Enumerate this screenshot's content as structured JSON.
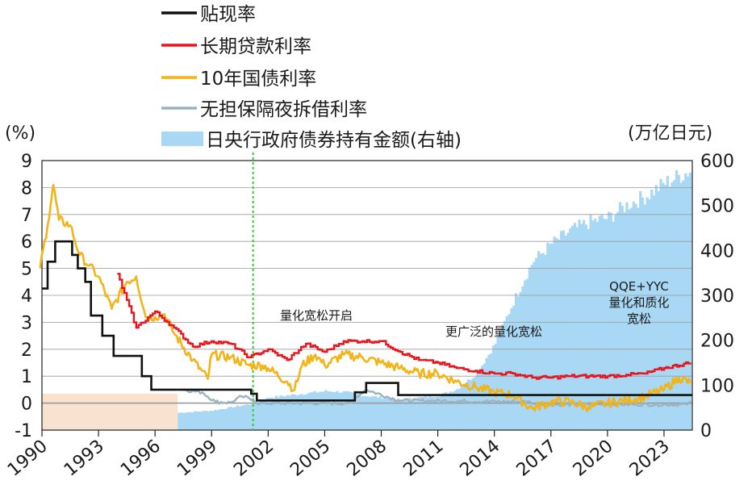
{
  "chart_data": {
    "type": "line",
    "ylabel_left": "(%)",
    "ylabel_right": "(万亿日元)",
    "ylim_left": [
      -1,
      9
    ],
    "ylim_right": [
      0,
      600
    ],
    "xlim": [
      1990,
      2024.5
    ],
    "x_ticks": [
      "1990",
      "1993",
      "1996",
      "1999",
      "2002",
      "2005",
      "2008",
      "2011",
      "2014",
      "2017",
      "2020",
      "2023"
    ],
    "y_ticks_left": [
      "9",
      "8",
      "7",
      "6",
      "5",
      "4",
      "3",
      "2",
      "1",
      "0",
      "-1"
    ],
    "y_ticks_right": [
      "600",
      "500",
      "400",
      "300",
      "200",
      "100",
      "0"
    ],
    "grid": true,
    "legend_position": "top-center",
    "colors": {
      "discount": "#111111",
      "long_term": "#e8141c",
      "jgb10": "#f2b418",
      "call": "#9ab3c0",
      "boj_holdings": "#a9d8f5",
      "background_shade": "#f9e2cf",
      "vline": "#33cc33"
    },
    "legend": [
      {
        "key": "discount",
        "label": "贴现率"
      },
      {
        "key": "long_term",
        "label": "长期贷款利率"
      },
      {
        "key": "jgb10",
        "label": "10年国债利率"
      },
      {
        "key": "call",
        "label": "无担保隔夜拆借利率"
      },
      {
        "key": "boj_holdings",
        "label": "日央行政府债券持有金额(右轴)"
      }
    ],
    "annotations": [
      {
        "lines": [
          "量化宽松开启"
        ]
      },
      {
        "lines": [
          "更广泛的量化宽松"
        ]
      },
      {
        "lines": [
          "QQE+YYC",
          "量化和质化",
          "宽松"
        ]
      }
    ],
    "vline_x": 2001.2,
    "series": [
      {
        "name": "贴现率",
        "key": "discount",
        "points": [
          [
            1990,
            4.25
          ],
          [
            1990.3,
            5.25
          ],
          [
            1990.7,
            6.0
          ],
          [
            1991.5,
            6.0
          ],
          [
            1991.6,
            5.5
          ],
          [
            1991.9,
            5.0
          ],
          [
            1992.3,
            4.5
          ],
          [
            1992.6,
            3.25
          ],
          [
            1993.2,
            2.5
          ],
          [
            1993.8,
            1.75
          ],
          [
            1995.3,
            1.0
          ],
          [
            1995.8,
            0.5
          ],
          [
            2001.1,
            0.35
          ],
          [
            2001.4,
            0.1
          ],
          [
            2006.6,
            0.4
          ],
          [
            2007.2,
            0.75
          ],
          [
            2008.9,
            0.3
          ],
          [
            2024.5,
            0.3
          ]
        ]
      },
      {
        "name": "长期贷款利率",
        "key": "long_term",
        "points": [
          [
            1994,
            4.8
          ],
          [
            1995,
            2.8
          ],
          [
            1996,
            3.4
          ],
          [
            1997,
            2.8
          ],
          [
            1998,
            2.1
          ],
          [
            1999,
            2.3
          ],
          [
            2000,
            2.2
          ],
          [
            2001,
            1.7
          ],
          [
            2002,
            2.0
          ],
          [
            2003,
            1.6
          ],
          [
            2004,
            2.2
          ],
          [
            2005,
            1.9
          ],
          [
            2006,
            2.3
          ],
          [
            2007,
            2.3
          ],
          [
            2008,
            2.3
          ],
          [
            2009,
            1.9
          ],
          [
            2010,
            1.6
          ],
          [
            2011,
            1.5
          ],
          [
            2012,
            1.3
          ],
          [
            2013,
            1.2
          ],
          [
            2014,
            1.1
          ],
          [
            2015,
            1.1
          ],
          [
            2016,
            0.95
          ],
          [
            2017,
            0.95
          ],
          [
            2018,
            1.0
          ],
          [
            2019,
            1.0
          ],
          [
            2020,
            1.0
          ],
          [
            2021,
            1.05
          ],
          [
            2022,
            1.1
          ],
          [
            2023,
            1.3
          ],
          [
            2024.4,
            1.5
          ]
        ]
      },
      {
        "name": "10年国债利率",
        "key": "jgb10",
        "points": [
          [
            1989.9,
            5.0
          ],
          [
            1990.3,
            6.6
          ],
          [
            1990.6,
            8.1
          ],
          [
            1990.9,
            6.8
          ],
          [
            1991.5,
            6.6
          ],
          [
            1992,
            5.5
          ],
          [
            1992.5,
            5.1
          ],
          [
            1993,
            4.7
          ],
          [
            1993.7,
            3.5
          ],
          [
            1994.5,
            4.5
          ],
          [
            1995,
            4.7
          ],
          [
            1995.5,
            3.2
          ],
          [
            1996,
            3.2
          ],
          [
            1996.5,
            3.3
          ],
          [
            1997,
            2.6
          ],
          [
            1998,
            1.6
          ],
          [
            1998.8,
            0.9
          ],
          [
            1999,
            1.8
          ],
          [
            2000,
            1.7
          ],
          [
            2001,
            1.4
          ],
          [
            2001.7,
            1.4
          ],
          [
            2002,
            1.3
          ],
          [
            2003,
            0.8
          ],
          [
            2003.4,
            0.5
          ],
          [
            2003.8,
            1.4
          ],
          [
            2004.5,
            1.8
          ],
          [
            2005,
            1.4
          ],
          [
            2006,
            1.8
          ],
          [
            2007,
            1.7
          ],
          [
            2008,
            1.5
          ],
          [
            2009,
            1.3
          ],
          [
            2010,
            1.1
          ],
          [
            2011,
            1.1
          ],
          [
            2012,
            0.8
          ],
          [
            2013,
            0.6
          ],
          [
            2014,
            0.4
          ],
          [
            2015,
            0.3
          ],
          [
            2016,
            -0.2
          ],
          [
            2017,
            0.05
          ],
          [
            2018,
            0.05
          ],
          [
            2019,
            -0.15
          ],
          [
            2020,
            0.0
          ],
          [
            2021,
            0.1
          ],
          [
            2022,
            0.25
          ],
          [
            2023,
            0.5
          ],
          [
            2023.8,
            0.95
          ],
          [
            2024.4,
            0.75
          ]
        ]
      },
      {
        "name": "无担保隔夜拆借利率",
        "key": "call",
        "points": [
          [
            1997.5,
            0.5
          ],
          [
            1998.5,
            0.4
          ],
          [
            1999.2,
            0.05
          ],
          [
            2000,
            0.02
          ],
          [
            2000.6,
            0.25
          ],
          [
            2001.2,
            0.15
          ],
          [
            2001.4,
            0.0
          ],
          [
            2006.5,
            0.0
          ],
          [
            2006.7,
            0.25
          ],
          [
            2007.2,
            0.5
          ],
          [
            2008.9,
            0.1
          ],
          [
            2015.9,
            0.05
          ],
          [
            2016.2,
            -0.05
          ],
          [
            2024.2,
            -0.05
          ],
          [
            2024.4,
            0.08
          ]
        ]
      },
      {
        "name": "日央行政府债券持有金额(右轴)",
        "key": "boj_holdings",
        "points": [
          [
            1997.2,
            40
          ],
          [
            1999,
            45
          ],
          [
            2001,
            60
          ],
          [
            2002,
            75
          ],
          [
            2003,
            80
          ],
          [
            2004,
            85
          ],
          [
            2005,
            90
          ],
          [
            2006,
            88
          ],
          [
            2007,
            80
          ],
          [
            2008,
            75
          ],
          [
            2009,
            70
          ],
          [
            2010,
            75
          ],
          [
            2011,
            80
          ],
          [
            2012,
            95
          ],
          [
            2013,
            130
          ],
          [
            2014,
            200
          ],
          [
            2015,
            300
          ],
          [
            2016,
            390
          ],
          [
            2017,
            430
          ],
          [
            2018,
            460
          ],
          [
            2019,
            480
          ],
          [
            2020,
            490
          ],
          [
            2021,
            520
          ],
          [
            2022,
            540
          ],
          [
            2023,
            570
          ],
          [
            2024.4,
            600
          ]
        ]
      }
    ]
  }
}
